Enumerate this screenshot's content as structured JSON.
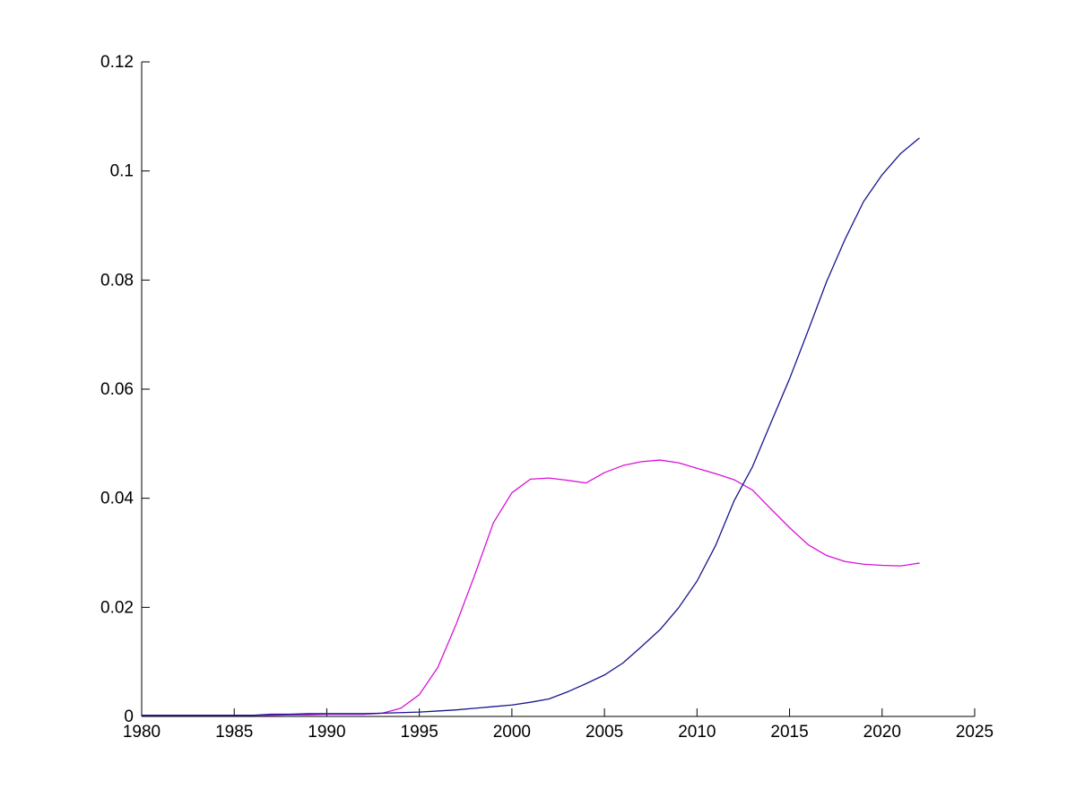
{
  "chart_data": {
    "type": "line",
    "title": "",
    "xlabel": "",
    "ylabel": "",
    "grid": false,
    "legend": null,
    "xlim": [
      1980,
      2025
    ],
    "ylim": [
      0,
      0.12
    ],
    "axis_color": "#000000",
    "background_color": "#ffffff",
    "x_ticks": {
      "values": [
        1980,
        1985,
        1990,
        1995,
        2000,
        2005,
        2010,
        2015,
        2020,
        2025
      ],
      "labels": [
        "1980",
        "1985",
        "1990",
        "1995",
        "2000",
        "2005",
        "2010",
        "2015",
        "2020",
        "2025"
      ]
    },
    "y_ticks": {
      "values": [
        0,
        0.02,
        0.04,
        0.06,
        0.08,
        0.1,
        0.12
      ],
      "labels": [
        "0",
        "0.02",
        "0.04",
        "0.06",
        "0.08",
        "0.1",
        "0.12"
      ]
    },
    "x": [
      1980,
      1981,
      1982,
      1983,
      1984,
      1985,
      1986,
      1987,
      1988,
      1989,
      1990,
      1991,
      1992,
      1993,
      1994,
      1995,
      1996,
      1997,
      1998,
      1999,
      2000,
      2001,
      2002,
      2003,
      2004,
      2005,
      2006,
      2007,
      2008,
      2009,
      2010,
      2011,
      2012,
      2013,
      2014,
      2015,
      2016,
      2017,
      2018,
      2019,
      2020,
      2021,
      2022
    ],
    "series": [
      {
        "name": "magenta-series",
        "color": "#d911d9",
        "values": [
          0.0002,
          0.0002,
          0.0002,
          0.0002,
          0.0002,
          0.0002,
          0.0002,
          0.0002,
          0.0003,
          0.0003,
          0.0004,
          0.0004,
          0.0004,
          0.0006,
          0.0015,
          0.004,
          0.009,
          0.017,
          0.026,
          0.0355,
          0.041,
          0.0435,
          0.0437,
          0.0433,
          0.0428,
          0.0447,
          0.046,
          0.0467,
          0.047,
          0.0465,
          0.0455,
          0.0445,
          0.0434,
          0.0415,
          0.038,
          0.0346,
          0.0315,
          0.0295,
          0.0284,
          0.0279,
          0.0277,
          0.0276,
          0.0281
        ]
      },
      {
        "name": "blue-series",
        "color": "#16168e",
        "values": [
          0.0002,
          0.0002,
          0.0002,
          0.0002,
          0.0002,
          0.0002,
          0.0002,
          0.0004,
          0.0004,
          0.0005,
          0.0005,
          0.0005,
          0.0005,
          0.0006,
          0.0007,
          0.0008,
          0.001,
          0.0012,
          0.0015,
          0.0018,
          0.0021,
          0.0026,
          0.0032,
          0.0045,
          0.006,
          0.0076,
          0.0098,
          0.0128,
          0.0159,
          0.0199,
          0.0248,
          0.0313,
          0.0395,
          0.0458,
          0.0539,
          0.0619,
          0.0707,
          0.0797,
          0.0875,
          0.0944,
          0.0993,
          0.1032,
          0.106
        ]
      }
    ]
  }
}
